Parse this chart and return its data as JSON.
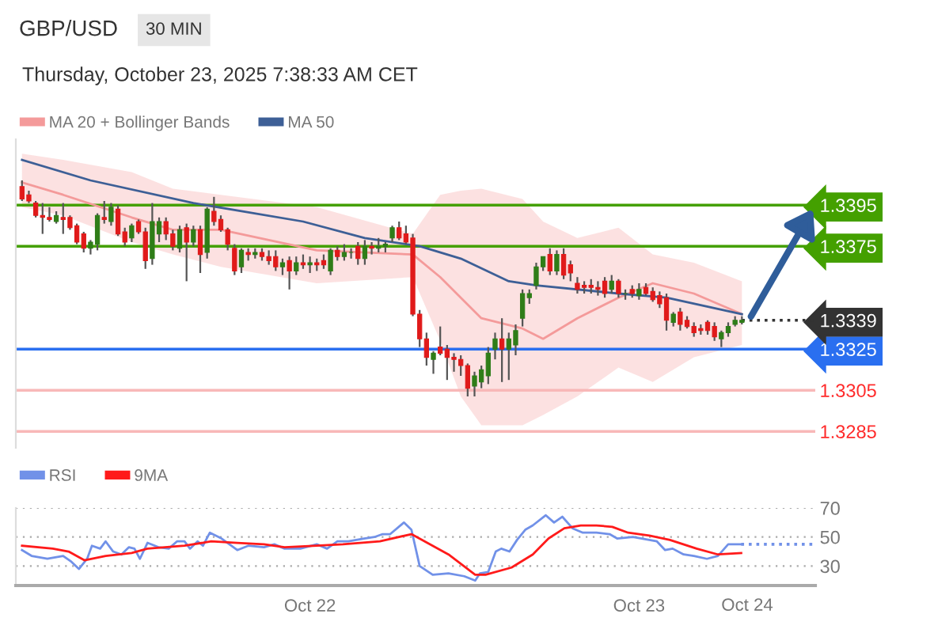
{
  "chart_data": [
    {
      "type": "candlestick",
      "title": "GBP/USD",
      "subtitle": "Thursday, October 23, 2025 7:38:33 AM CET",
      "annotations": [
        "30 MIN"
      ],
      "x": [
        "2025-10-21T03:00",
        "2025-10-21T03:30",
        "2025-10-21T04:00",
        "2025-10-21T04:30",
        "2025-10-21T05:00",
        "2025-10-21T05:30",
        "2025-10-21T06:00",
        "2025-10-21T06:30",
        "2025-10-21T07:00",
        "2025-10-21T07:30",
        "2025-10-21T08:00",
        "2025-10-21T08:30",
        "2025-10-21T09:00",
        "2025-10-21T09:30",
        "2025-10-21T10:00",
        "2025-10-21T10:30",
        "2025-10-21T11:00",
        "2025-10-21T11:30",
        "2025-10-21T12:00",
        "2025-10-21T12:30",
        "2025-10-21T13:00",
        "2025-10-21T13:30",
        "2025-10-21T14:00",
        "2025-10-21T14:30",
        "2025-10-21T15:00",
        "2025-10-21T15:30",
        "2025-10-21T16:00",
        "2025-10-21T16:30",
        "2025-10-21T17:00",
        "2025-10-21T17:30",
        "2025-10-21T18:00",
        "2025-10-21T18:30",
        "2025-10-21T19:00",
        "2025-10-21T19:30",
        "2025-10-21T20:00",
        "2025-10-21T20:30",
        "2025-10-21T21:00",
        "2025-10-21T21:30",
        "2025-10-21T22:00",
        "2025-10-21T22:30",
        "2025-10-21T23:00",
        "2025-10-21T23:30",
        "2025-10-22T00:00",
        "2025-10-22T00:30",
        "2025-10-22T01:00",
        "2025-10-22T01:30",
        "2025-10-22T02:00",
        "2025-10-22T02:30",
        "2025-10-22T03:00",
        "2025-10-22T03:30",
        "2025-10-22T04:00",
        "2025-10-22T04:30",
        "2025-10-22T05:00",
        "2025-10-22T05:30",
        "2025-10-22T06:00",
        "2025-10-22T06:30",
        "2025-10-22T07:00",
        "2025-10-22T07:30",
        "2025-10-22T08:00",
        "2025-10-22T08:30",
        "2025-10-22T09:00",
        "2025-10-22T09:30",
        "2025-10-22T10:00",
        "2025-10-22T10:30",
        "2025-10-22T11:00",
        "2025-10-22T11:30",
        "2025-10-22T12:00",
        "2025-10-22T12:30",
        "2025-10-22T13:00",
        "2025-10-22T13:30",
        "2025-10-22T14:00",
        "2025-10-22T14:30",
        "2025-10-22T15:00",
        "2025-10-22T15:30",
        "2025-10-22T16:00",
        "2025-10-22T16:30",
        "2025-10-22T17:00",
        "2025-10-22T17:30",
        "2025-10-22T18:00",
        "2025-10-22T18:30",
        "2025-10-22T19:00",
        "2025-10-22T19:30",
        "2025-10-22T20:00",
        "2025-10-22T20:30",
        "2025-10-22T21:00",
        "2025-10-22T21:30",
        "2025-10-22T22:00",
        "2025-10-22T22:30",
        "2025-10-22T23:00",
        "2025-10-22T23:30",
        "2025-10-23T00:00",
        "2025-10-23T00:30",
        "2025-10-23T01:00",
        "2025-10-23T01:30",
        "2025-10-23T02:00",
        "2025-10-23T02:30",
        "2025-10-23T03:00",
        "2025-10-23T03:30",
        "2025-10-23T04:00",
        "2025-10-23T04:30",
        "2025-10-23T05:00",
        "2025-10-23T05:30",
        "2025-10-23T06:00",
        "2025-10-23T06:30",
        "2025-10-23T07:00",
        "2025-10-23T07:30"
      ],
      "ohlc": [
        [
          1.3404,
          1.3407,
          1.3397,
          1.3398
        ],
        [
          1.34,
          1.3402,
          1.3396,
          1.3397
        ],
        [
          1.3396,
          1.3397,
          1.3389,
          1.339
        ],
        [
          1.339,
          1.3396,
          1.3381,
          1.3389
        ],
        [
          1.3389,
          1.3394,
          1.3387,
          1.3388
        ],
        [
          1.3387,
          1.3392,
          1.3386,
          1.339
        ],
        [
          1.3389,
          1.3396,
          1.3381,
          1.3388
        ],
        [
          1.3389,
          1.339,
          1.3383,
          1.3384
        ],
        [
          1.3385,
          1.3386,
          1.3376,
          1.3377
        ],
        [
          1.3381,
          1.3382,
          1.3372,
          1.3374
        ],
        [
          1.3374,
          1.3378,
          1.3371,
          1.3377
        ],
        [
          1.3376,
          1.3391,
          1.3373,
          1.339
        ],
        [
          1.3389,
          1.3397,
          1.3386,
          1.3388
        ],
        [
          1.3387,
          1.3396,
          1.3385,
          1.3394
        ],
        [
          1.3393,
          1.3395,
          1.338,
          1.3381
        ],
        [
          1.3382,
          1.3384,
          1.3375,
          1.3377
        ],
        [
          1.3379,
          1.3386,
          1.3377,
          1.3385
        ],
        [
          1.3387,
          1.3388,
          1.3381,
          1.3382
        ],
        [
          1.3382,
          1.3384,
          1.3364,
          1.3368
        ],
        [
          1.3369,
          1.3396,
          1.3366,
          1.3387
        ],
        [
          1.3381,
          1.3389,
          1.3377,
          1.3387
        ],
        [
          1.3387,
          1.3389,
          1.3378,
          1.3381
        ],
        [
          1.3381,
          1.3383,
          1.3373,
          1.3375
        ],
        [
          1.3374,
          1.3385,
          1.3372,
          1.3383
        ],
        [
          1.3384,
          1.3386,
          1.3358,
          1.3377
        ],
        [
          1.3377,
          1.3385,
          1.3375,
          1.3383
        ],
        [
          1.3383,
          1.3385,
          1.3362,
          1.3371
        ],
        [
          1.3372,
          1.3394,
          1.3369,
          1.3393
        ],
        [
          1.3392,
          1.3399,
          1.3385,
          1.3387
        ],
        [
          1.3388,
          1.339,
          1.3382,
          1.3383
        ],
        [
          1.3383,
          1.3384,
          1.3373,
          1.3376
        ],
        [
          1.3374,
          1.3376,
          1.3361,
          1.3363
        ],
        [
          1.3365,
          1.3374,
          1.3362,
          1.3373
        ],
        [
          1.3372,
          1.3374,
          1.3368,
          1.3371
        ],
        [
          1.3371,
          1.3374,
          1.3369,
          1.3372
        ],
        [
          1.3372,
          1.3374,
          1.3368,
          1.337
        ],
        [
          1.337,
          1.3373,
          1.3366,
          1.3368
        ],
        [
          1.337,
          1.3373,
          1.3363,
          1.3365
        ],
        [
          1.3365,
          1.3369,
          1.3361,
          1.3367
        ],
        [
          1.3368,
          1.337,
          1.3354,
          1.3363
        ],
        [
          1.3363,
          1.337,
          1.3361,
          1.3367
        ],
        [
          1.3367,
          1.3371,
          1.3364,
          1.3366
        ],
        [
          1.3366,
          1.337,
          1.3362,
          1.3367
        ],
        [
          1.3367,
          1.3369,
          1.3363,
          1.3366
        ],
        [
          1.3368,
          1.3371,
          1.3364,
          1.3366
        ],
        [
          1.3363,
          1.3374,
          1.3361,
          1.3373
        ],
        [
          1.3373,
          1.3375,
          1.3368,
          1.337
        ],
        [
          1.337,
          1.3376,
          1.3368,
          1.3372
        ],
        [
          1.3372,
          1.3374,
          1.3369,
          1.3372
        ],
        [
          1.3375,
          1.3377,
          1.3366,
          1.3369
        ],
        [
          1.3369,
          1.3378,
          1.3366,
          1.3375
        ],
        [
          1.3375,
          1.3377,
          1.3371,
          1.3374
        ],
        [
          1.3374,
          1.3379,
          1.3372,
          1.3375
        ],
        [
          1.3375,
          1.3377,
          1.3372,
          1.3376
        ],
        [
          1.3379,
          1.3385,
          1.3377,
          1.3384
        ],
        [
          1.3384,
          1.3387,
          1.3378,
          1.3379
        ],
        [
          1.3381,
          1.3385,
          1.3376,
          1.3377
        ],
        [
          1.3379,
          1.3381,
          1.3341,
          1.3342
        ],
        [
          1.3342,
          1.3344,
          1.3326,
          1.333
        ],
        [
          1.333,
          1.3333,
          1.3317,
          1.3321
        ],
        [
          1.332,
          1.3324,
          1.3313,
          1.3323
        ],
        [
          1.3326,
          1.3336,
          1.3322,
          1.3323
        ],
        [
          1.3325,
          1.3327,
          1.331,
          1.3321
        ],
        [
          1.3321,
          1.3323,
          1.3314,
          1.332
        ],
        [
          1.332,
          1.3322,
          1.3312,
          1.3317
        ],
        [
          1.3317,
          1.3318,
          1.3302,
          1.3306
        ],
        [
          1.3307,
          1.3314,
          1.3302,
          1.3312
        ],
        [
          1.3309,
          1.3317,
          1.3306,
          1.3315
        ],
        [
          1.3312,
          1.3326,
          1.3308,
          1.3323
        ],
        [
          1.3325,
          1.3333,
          1.332,
          1.333
        ],
        [
          1.333,
          1.334,
          1.3309,
          1.3325
        ],
        [
          1.3325,
          1.3333,
          1.331,
          1.333
        ],
        [
          1.3327,
          1.3337,
          1.3322,
          1.3334
        ],
        [
          1.334,
          1.3354,
          1.3336,
          1.3352
        ],
        [
          1.335,
          1.3354,
          1.3347,
          1.3352
        ],
        [
          1.3356,
          1.3367,
          1.3354,
          1.3365
        ],
        [
          1.3365,
          1.337,
          1.3363,
          1.337
        ],
        [
          1.3371,
          1.3374,
          1.3361,
          1.3363
        ],
        [
          1.3363,
          1.3373,
          1.3361,
          1.3371
        ],
        [
          1.3371,
          1.3374,
          1.3359,
          1.3361
        ],
        [
          1.3366,
          1.3368,
          1.3358,
          1.3362
        ],
        [
          1.3357,
          1.336,
          1.3352,
          1.3354
        ],
        [
          1.3356,
          1.3358,
          1.3352,
          1.3355
        ],
        [
          1.3356,
          1.3359,
          1.3352,
          1.3355
        ],
        [
          1.3355,
          1.3358,
          1.3351,
          1.3354
        ],
        [
          1.3358,
          1.336,
          1.335,
          1.3352
        ],
        [
          1.3354,
          1.3361,
          1.3352,
          1.3358
        ],
        [
          1.3358,
          1.3359,
          1.335,
          1.3352
        ],
        [
          1.3352,
          1.3354,
          1.3349,
          1.3352
        ],
        [
          1.3354,
          1.3356,
          1.335,
          1.3352
        ],
        [
          1.3351,
          1.3357,
          1.3349,
          1.3354
        ],
        [
          1.3355,
          1.3357,
          1.3351,
          1.3352
        ],
        [
          1.3353,
          1.3355,
          1.3348,
          1.3349
        ],
        [
          1.3351,
          1.3353,
          1.3345,
          1.3347
        ],
        [
          1.335,
          1.3352,
          1.3334,
          1.3339
        ],
        [
          1.3338,
          1.3343,
          1.3336,
          1.3342
        ],
        [
          1.3343,
          1.3345,
          1.3334,
          1.3337
        ],
        [
          1.3339,
          1.3341,
          1.3335,
          1.3336
        ],
        [
          1.3336,
          1.3338,
          1.3331,
          1.3333
        ],
        [
          1.3335,
          1.3337,
          1.3332,
          1.3334
        ],
        [
          1.3338,
          1.3339,
          1.3332,
          1.3334
        ],
        [
          1.3336,
          1.3338,
          1.3329,
          1.3331
        ],
        [
          1.333,
          1.3334,
          1.3326,
          1.3333
        ],
        [
          1.3333,
          1.3338,
          1.3331,
          1.3336
        ],
        [
          1.3337,
          1.3341,
          1.3336,
          1.3339
        ],
        [
          1.3338,
          1.3341,
          1.3337,
          1.3339
        ]
      ],
      "series": [
        {
          "name": "MA 20 + Bollinger Bands",
          "type": "line",
          "color": "#f49a9a",
          "x": [
            "2025-10-21T03:00",
            "2025-10-21T06:00",
            "2025-10-21T11:00",
            "2025-10-21T14:00",
            "2025-10-21T17:30",
            "2025-10-22T00:30",
            "2025-10-22T07:30",
            "2025-10-22T09:30",
            "2025-10-22T11:00",
            "2025-10-22T12:30",
            "2025-10-22T15:30",
            "2025-10-22T17:00",
            "2025-10-22T19:30",
            "2025-10-22T22:30",
            "2025-10-23T01:00",
            "2025-10-23T04:00",
            "2025-10-23T07:30"
          ],
          "values": [
            1.3406,
            1.34,
            1.3389,
            1.3383,
            1.3383,
            1.3373,
            1.3371,
            1.336,
            1.335,
            1.334,
            1.3335,
            1.333,
            1.334,
            1.335,
            1.3357,
            1.3352,
            1.3342
          ],
          "upper": [
            1.342,
            1.3417,
            1.3411,
            1.3403,
            1.34,
            1.3394,
            1.3381,
            1.34,
            1.3402,
            1.3403,
            1.3398,
            1.3387,
            1.3379,
            1.3384,
            1.3371,
            1.3367,
            1.3358
          ],
          "lower": [
            1.3394,
            1.339,
            1.3377,
            1.3371,
            1.3365,
            1.3357,
            1.336,
            1.3329,
            1.3302,
            1.3288,
            1.3288,
            1.3293,
            1.3302,
            1.3316,
            1.3309,
            1.3321,
            1.3327
          ]
        },
        {
          "name": "MA 50",
          "type": "line",
          "color": "#3d5f96",
          "x": [
            "2025-10-21T03:00",
            "2025-10-21T08:00",
            "2025-10-21T15:30",
            "2025-10-21T23:30",
            "2025-10-22T04:00",
            "2025-10-22T08:00",
            "2025-10-22T11:00",
            "2025-10-22T14:30",
            "2025-10-22T16:30",
            "2025-10-22T22:30",
            "2025-10-23T02:00",
            "2025-10-23T07:30"
          ],
          "values": [
            1.3417,
            1.3407,
            1.3396,
            1.3387,
            1.3379,
            1.3375,
            1.3369,
            1.3358,
            1.3356,
            1.3352,
            1.335,
            1.3342
          ]
        }
      ],
      "ref_lines": [
        {
          "axis": "y",
          "value": 1.3395,
          "color": "#44a000"
        },
        {
          "axis": "y",
          "value": 1.3375,
          "color": "#44a000"
        },
        {
          "axis": "y",
          "value": 1.3339,
          "color": "#333333",
          "line_style": "dotted"
        },
        {
          "axis": "y",
          "value": 1.3325,
          "color": "#2a6ff0"
        },
        {
          "axis": "y",
          "value": 1.3305,
          "color": "#f8b8b8"
        },
        {
          "axis": "y",
          "value": 1.3285,
          "color": "#f8b8b8"
        }
      ],
      "ylim": [
        1.3277,
        1.3427
      ],
      "yticks": [
        1.3285,
        1.3305,
        1.3325,
        1.3339,
        1.3375,
        1.3395
      ],
      "xlim": [
        "2025-10-21T02:33",
        "2025-10-23T12:51"
      ],
      "legend": "top left"
    },
    {
      "type": "line",
      "series": [
        {
          "name": "RSI",
          "color": "#7191e8",
          "x": [
            "2025-10-21T03:00",
            "2025-10-21T03:42",
            "2025-10-21T04:51",
            "2025-10-21T06:00",
            "2025-10-21T06:36",
            "2025-10-21T07:09",
            "2025-10-21T07:45",
            "2025-10-21T08:06",
            "2025-10-21T08:42",
            "2025-10-21T09:06",
            "2025-10-21T09:39",
            "2025-10-21T10:15",
            "2025-10-21T10:48",
            "2025-10-21T11:12",
            "2025-10-21T11:36",
            "2025-10-21T12:09",
            "2025-10-21T12:57",
            "2025-10-21T13:42",
            "2025-10-21T14:18",
            "2025-10-21T14:51",
            "2025-10-21T15:15",
            "2025-10-21T15:48",
            "2025-10-21T16:12",
            "2025-10-21T16:42",
            "2025-10-21T17:33",
            "2025-10-21T18:42",
            "2025-10-21T19:30",
            "2025-10-21T20:39",
            "2025-10-21T21:24",
            "2025-10-21T22:09",
            "2025-10-21T23:18",
            "2025-10-22T00:30",
            "2025-10-22T01:15",
            "2025-10-22T02:00",
            "2025-10-22T02:48",
            "2025-10-22T03:57",
            "2025-10-22T04:42",
            "2025-10-22T05:18",
            "2025-10-22T05:51",
            "2025-10-22T06:51",
            "2025-10-22T07:24",
            "2025-10-22T08:00",
            "2025-10-22T08:57",
            "2025-10-22T10:06",
            "2025-10-22T11:15",
            "2025-10-22T12:03",
            "2025-10-22T12:24",
            "2025-10-22T13:00",
            "2025-10-22T13:33",
            "2025-10-22T13:57",
            "2025-10-22T14:33",
            "2025-10-22T15:06",
            "2025-10-22T15:42",
            "2025-10-22T16:15",
            "2025-10-22T17:12",
            "2025-10-22T17:48",
            "2025-10-22T18:24",
            "2025-10-22T19:09",
            "2025-10-22T19:54",
            "2025-10-22T20:54",
            "2025-10-22T21:51",
            "2025-10-22T22:24",
            "2025-10-22T23:33",
            "2025-10-23T00:45",
            "2025-10-23T01:18",
            "2025-10-23T01:54",
            "2025-10-23T02:27",
            "2025-10-23T03:15",
            "2025-10-23T04:00",
            "2025-10-23T04:57",
            "2025-10-23T05:45",
            "2025-10-23T06:30",
            "2025-10-23T07:27"
          ],
          "values": [
            41,
            37,
            35,
            37,
            33,
            28,
            35,
            44,
            42,
            47,
            40,
            38,
            43,
            42,
            35,
            46,
            43,
            42,
            47,
            47,
            42,
            47,
            44,
            53,
            49,
            41,
            44,
            43,
            45,
            42,
            42,
            45,
            42,
            47,
            47,
            49,
            50,
            52,
            52,
            60,
            55,
            30,
            24,
            25,
            23,
            20,
            25,
            26,
            40,
            42,
            40,
            48,
            55,
            58,
            65,
            60,
            64,
            56,
            53,
            53,
            52,
            49,
            50,
            48,
            47,
            41,
            42,
            38,
            37,
            35,
            37,
            45,
            45
          ]
        },
        {
          "name": "9MA",
          "color": "#ff1a1a",
          "x": [
            "2025-10-21T03:00",
            "2025-10-21T05:15",
            "2025-10-21T06:24",
            "2025-10-21T07:33",
            "2025-10-21T09:06",
            "2025-10-21T11:00",
            "2025-10-21T12:09",
            "2025-10-21T14:51",
            "2025-10-21T16:48",
            "2025-10-21T18:42",
            "2025-10-21T20:39",
            "2025-10-21T22:09",
            "2025-10-22T00:30",
            "2025-10-22T02:24",
            "2025-10-22T05:06",
            "2025-10-22T07:24",
            "2025-10-22T10:06",
            "2025-10-22T12:03",
            "2025-10-22T12:48",
            "2025-10-22T14:42",
            "2025-10-22T16:15",
            "2025-10-22T17:24",
            "2025-10-22T18:33",
            "2025-10-22T19:45",
            "2025-10-22T20:54",
            "2025-10-22T22:03",
            "2025-10-22T23:12",
            "2025-10-23T00:45",
            "2025-10-23T02:15",
            "2025-10-23T04:12",
            "2025-10-23T05:45",
            "2025-10-23T07:27"
          ],
          "values": [
            44,
            42,
            40,
            34,
            37,
            39,
            42,
            44,
            47,
            46,
            45,
            43,
            44,
            45,
            47,
            52,
            38,
            24,
            24,
            29,
            38,
            49,
            56,
            58,
            58,
            57,
            53,
            51,
            48,
            42,
            38,
            39
          ]
        }
      ],
      "ref_lines": [
        {
          "axis": "y",
          "value": 45,
          "color": "#7191e8",
          "line_style": "dotted"
        }
      ],
      "xlim": [
        "2025-10-21T02:33",
        "2025-10-23T12:51"
      ],
      "xticks": [
        {
          "value": "2025-10-22",
          "label": "Oct 22"
        },
        {
          "value": "2025-10-23",
          "label": "Oct 23"
        }
      ],
      "annotations": [
        "Oct 24"
      ],
      "ylim": [
        16.6,
        70
      ],
      "yticks": [
        30,
        50,
        70
      ],
      "grid": "y",
      "legend": "top left"
    }
  ]
}
